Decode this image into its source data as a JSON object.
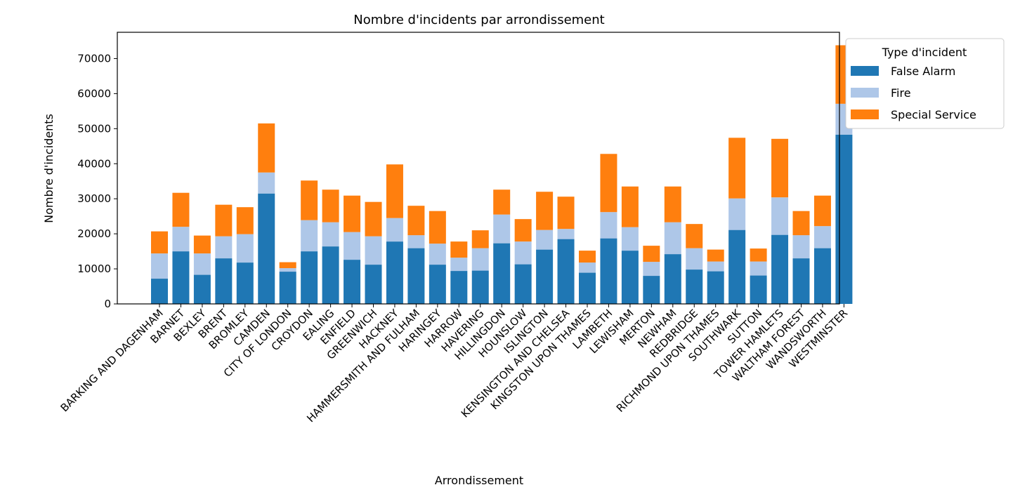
{
  "chart_data": {
    "type": "bar",
    "stacked": true,
    "title": "Nombre d'incidents par arrondissement",
    "xlabel": "Arrondissement",
    "ylabel": "Nombre d'incidents",
    "ylim": [
      0,
      77500
    ],
    "yticks": [
      0,
      10000,
      20000,
      30000,
      40000,
      50000,
      60000,
      70000
    ],
    "grid": false,
    "legend": {
      "title": "Type d'incident",
      "placement": "outside-right-top"
    },
    "categories": [
      "BARKING AND DAGENHAM",
      "BARNET",
      "BEXLEY",
      "BRENT",
      "BROMLEY",
      "CAMDEN",
      "CITY OF LONDON",
      "CROYDON",
      "EALING",
      "ENFIELD",
      "GREENWICH",
      "HACKNEY",
      "HAMMERSMITH AND FULHAM",
      "HARINGEY",
      "HARROW",
      "HAVERING",
      "HILLINGDON",
      "HOUNSLOW",
      "ISLINGTON",
      "KENSINGTON AND CHELSEA",
      "KINGSTON UPON THAMES",
      "LAMBETH",
      "LEWISHAM",
      "MERTON",
      "NEWHAM",
      "REDBRIDGE",
      "RICHMOND UPON THAMES",
      "SOUTHWARK",
      "SUTTON",
      "TOWER HAMLETS",
      "WALTHAM FOREST",
      "WANDSWORTH",
      "WESTMINSTER"
    ],
    "series": [
      {
        "name": "False Alarm",
        "color": "#1f77b4",
        "values": [
          7200,
          15000,
          8300,
          13000,
          11800,
          31500,
          9200,
          15000,
          16400,
          12600,
          11200,
          17800,
          15900,
          11200,
          9400,
          9500,
          17300,
          11300,
          15500,
          18500,
          8900,
          18700,
          15200,
          8000,
          14200,
          9800,
          9300,
          21100,
          8100,
          19700,
          13000,
          15900,
          48300
        ]
      },
      {
        "name": "Fire",
        "color": "#aec7e8",
        "values": [
          7200,
          7000,
          6100,
          6300,
          8100,
          6000,
          1000,
          8900,
          6900,
          7900,
          8100,
          6700,
          3700,
          6000,
          3800,
          6400,
          8200,
          6500,
          5600,
          2900,
          2900,
          7500,
          6700,
          4000,
          9100,
          6100,
          2800,
          9000,
          4000,
          10700,
          6600,
          6300,
          8800
        ]
      },
      {
        "name": "Special Service",
        "color": "#ff7f0e",
        "values": [
          6300,
          9700,
          5100,
          9000,
          7700,
          14000,
          1700,
          11300,
          9300,
          10400,
          9800,
          15300,
          8400,
          9300,
          4600,
          5100,
          7100,
          6400,
          10900,
          9200,
          3400,
          16600,
          11600,
          4600,
          10200,
          6900,
          3400,
          17300,
          3700,
          16700,
          6900,
          8700,
          16700
        ]
      }
    ]
  }
}
